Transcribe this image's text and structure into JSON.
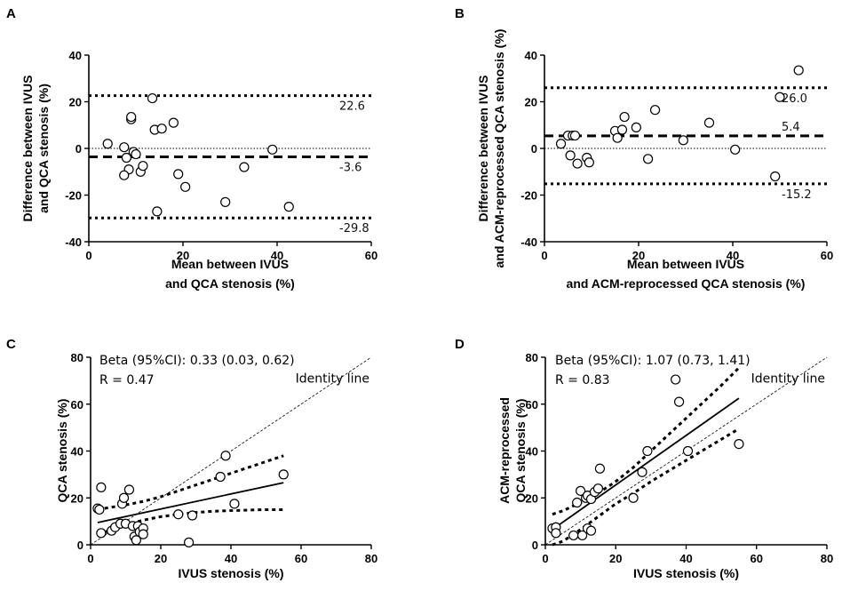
{
  "chart_data": [
    {
      "id": "A",
      "type": "scatter",
      "panel_label": "A",
      "xlabel_lines": [
        "Mean between IVUS",
        "and QCA stenosis (%)"
      ],
      "ylabel_lines": [
        "Difference between IVUS",
        "and QCA stenosis (%)"
      ],
      "xlim": [
        0,
        60
      ],
      "ylim": [
        -40,
        40
      ],
      "xticks": [
        0,
        20,
        40,
        60
      ],
      "yticks": [
        -40,
        -20,
        0,
        20,
        40
      ],
      "hlines": [
        {
          "kind": "upper_loa",
          "y": 22.6,
          "label": "22.6"
        },
        {
          "kind": "mean_difference",
          "y": -3.6,
          "label": "-3.6"
        },
        {
          "kind": "lower_loa",
          "y": -29.8,
          "label": "-29.8"
        },
        {
          "kind": "zero",
          "y": 0,
          "label": ""
        }
      ],
      "points": [
        [
          4,
          2
        ],
        [
          7.5,
          0.5
        ],
        [
          8,
          -4
        ],
        [
          8.5,
          -9
        ],
        [
          7.5,
          -11.5
        ],
        [
          9,
          12.5
        ],
        [
          9,
          13.5
        ],
        [
          9.5,
          -1.5
        ],
        [
          10,
          -2.5
        ],
        [
          11,
          -10
        ],
        [
          11.5,
          -7.5
        ],
        [
          13.5,
          21.5
        ],
        [
          14,
          8
        ],
        [
          14.5,
          -27
        ],
        [
          15.5,
          8.5
        ],
        [
          18,
          11
        ],
        [
          19,
          -11
        ],
        [
          20.5,
          -16.5
        ],
        [
          29,
          -23
        ],
        [
          33,
          -8
        ],
        [
          39,
          -0.5
        ],
        [
          42.5,
          -25
        ]
      ]
    },
    {
      "id": "B",
      "type": "scatter",
      "panel_label": "B",
      "xlabel_lines": [
        "Mean between IVUS",
        "and ACM-reprocessed QCA stenosis (%)"
      ],
      "ylabel_lines": [
        "Difference between IVUS",
        "and ACM-reprocessed QCA stenosis (%)"
      ],
      "xlim": [
        0,
        60
      ],
      "ylim": [
        -40,
        40
      ],
      "xticks": [
        0,
        20,
        40,
        60
      ],
      "yticks": [
        -40,
        -20,
        0,
        20,
        40
      ],
      "hlines": [
        {
          "kind": "upper_loa",
          "y": 26.0,
          "label": "26.0"
        },
        {
          "kind": "mean_difference",
          "y": 5.4,
          "label": "5.4"
        },
        {
          "kind": "lower_loa",
          "y": -15.2,
          "label": "-15.2"
        },
        {
          "kind": "zero",
          "y": 0,
          "label": ""
        }
      ],
      "points": [
        [
          3.5,
          2
        ],
        [
          5,
          5.5
        ],
        [
          5.5,
          -3
        ],
        [
          6,
          5.5
        ],
        [
          6.5,
          5.5
        ],
        [
          7,
          -6.5
        ],
        [
          9,
          -4
        ],
        [
          9.5,
          -6
        ],
        [
          15,
          7.5
        ],
        [
          15.5,
          4.5
        ],
        [
          16.5,
          8
        ],
        [
          17,
          13.5
        ],
        [
          19.5,
          9
        ],
        [
          22,
          -4.5
        ],
        [
          23.5,
          16.5
        ],
        [
          29.5,
          3.5
        ],
        [
          35,
          11
        ],
        [
          40.5,
          -0.5
        ],
        [
          49,
          -12
        ],
        [
          50,
          22
        ],
        [
          54,
          33.5
        ]
      ]
    },
    {
      "id": "C",
      "type": "scatter",
      "panel_label": "C",
      "xlabel": "IVUS stenosis (%)",
      "ylabel": "QCA stenosis (%)",
      "xlim": [
        0,
        80
      ],
      "ylim": [
        0,
        80
      ],
      "xticks": [
        0,
        20,
        40,
        60,
        80
      ],
      "yticks": [
        0,
        20,
        40,
        60,
        80
      ],
      "beta_text": "Beta (95%CI): 0.33 (0.03, 0.62)",
      "r_text": "R = 0.47",
      "identity_label": "Identity line",
      "regression": {
        "x": [
          2,
          55
        ],
        "y": [
          9.5,
          26.5
        ]
      },
      "ci_upper": {
        "x": [
          2,
          5,
          10,
          15,
          20,
          25,
          30,
          35,
          40,
          45,
          50,
          55
        ],
        "y": [
          15,
          15.8,
          17,
          18.5,
          20.5,
          23,
          25.5,
          28,
          30.5,
          33,
          35.5,
          38
        ]
      },
      "ci_lower": {
        "x": [
          2,
          5,
          10,
          15,
          20,
          25,
          30,
          35,
          40,
          45,
          50,
          55
        ],
        "y": [
          4,
          6,
          8.5,
          10.5,
          12,
          13,
          13.8,
          14.3,
          14.6,
          14.8,
          15,
          15
        ]
      },
      "points": [
        [
          2,
          15.5
        ],
        [
          2.5,
          15
        ],
        [
          3,
          24.5
        ],
        [
          3,
          5
        ],
        [
          6,
          6
        ],
        [
          7,
          7.5
        ],
        [
          8.5,
          9
        ],
        [
          9,
          17.5
        ],
        [
          9.5,
          20
        ],
        [
          10,
          9
        ],
        [
          11,
          23.5
        ],
        [
          12,
          8
        ],
        [
          12.5,
          3.5
        ],
        [
          13,
          2
        ],
        [
          13.5,
          8
        ],
        [
          14,
          5.5
        ],
        [
          15,
          7
        ],
        [
          15,
          4.5
        ],
        [
          25,
          13
        ],
        [
          28,
          1
        ],
        [
          29,
          12.5
        ],
        [
          37,
          29
        ],
        [
          38.5,
          38
        ],
        [
          41,
          17.5
        ],
        [
          55,
          30
        ]
      ]
    },
    {
      "id": "D",
      "type": "scatter",
      "panel_label": "D",
      "xlabel": "IVUS stenosis (%)",
      "ylabel_lines": [
        "ACM-reprocessed",
        "QCA stenosis (%)"
      ],
      "xlim": [
        0,
        80
      ],
      "ylim": [
        0,
        80
      ],
      "xticks": [
        0,
        20,
        40,
        60,
        80
      ],
      "yticks": [
        0,
        20,
        40,
        60,
        80
      ],
      "beta_text": "Beta (95%CI): 1.07 (0.73, 1.41)",
      "r_text": "R = 0.83",
      "identity_label": "Identity line",
      "regression": {
        "x": [
          2,
          55
        ],
        "y": [
          6.5,
          62.5
        ]
      },
      "ci_upper": {
        "x": [
          2,
          5,
          10,
          15,
          20,
          25,
          30,
          35,
          40,
          45,
          50,
          55
        ],
        "y": [
          13,
          14.5,
          18,
          22,
          27,
          33,
          40,
          47,
          54,
          61,
          68,
          75.5
        ]
      },
      "ci_lower": {
        "x": [
          2,
          5,
          10,
          15,
          20,
          25,
          30,
          35,
          40,
          45,
          50,
          55
        ],
        "y": [
          0,
          1.5,
          6.5,
          12,
          17.5,
          22,
          27,
          31.5,
          36,
          40.5,
          45,
          49.5
        ]
      },
      "points": [
        [
          2,
          7
        ],
        [
          3,
          7.5
        ],
        [
          3,
          5
        ],
        [
          8,
          4
        ],
        [
          9,
          18
        ],
        [
          10,
          23
        ],
        [
          10.5,
          4
        ],
        [
          11.5,
          20
        ],
        [
          12,
          21
        ],
        [
          12,
          7
        ],
        [
          13,
          19.5
        ],
        [
          13,
          6
        ],
        [
          14,
          22.5
        ],
        [
          15,
          24
        ],
        [
          15.5,
          32.5
        ],
        [
          25,
          20
        ],
        [
          27.5,
          31
        ],
        [
          29,
          40
        ],
        [
          37,
          70.5
        ],
        [
          38,
          61
        ],
        [
          40.5,
          40
        ],
        [
          55,
          43
        ]
      ]
    }
  ]
}
